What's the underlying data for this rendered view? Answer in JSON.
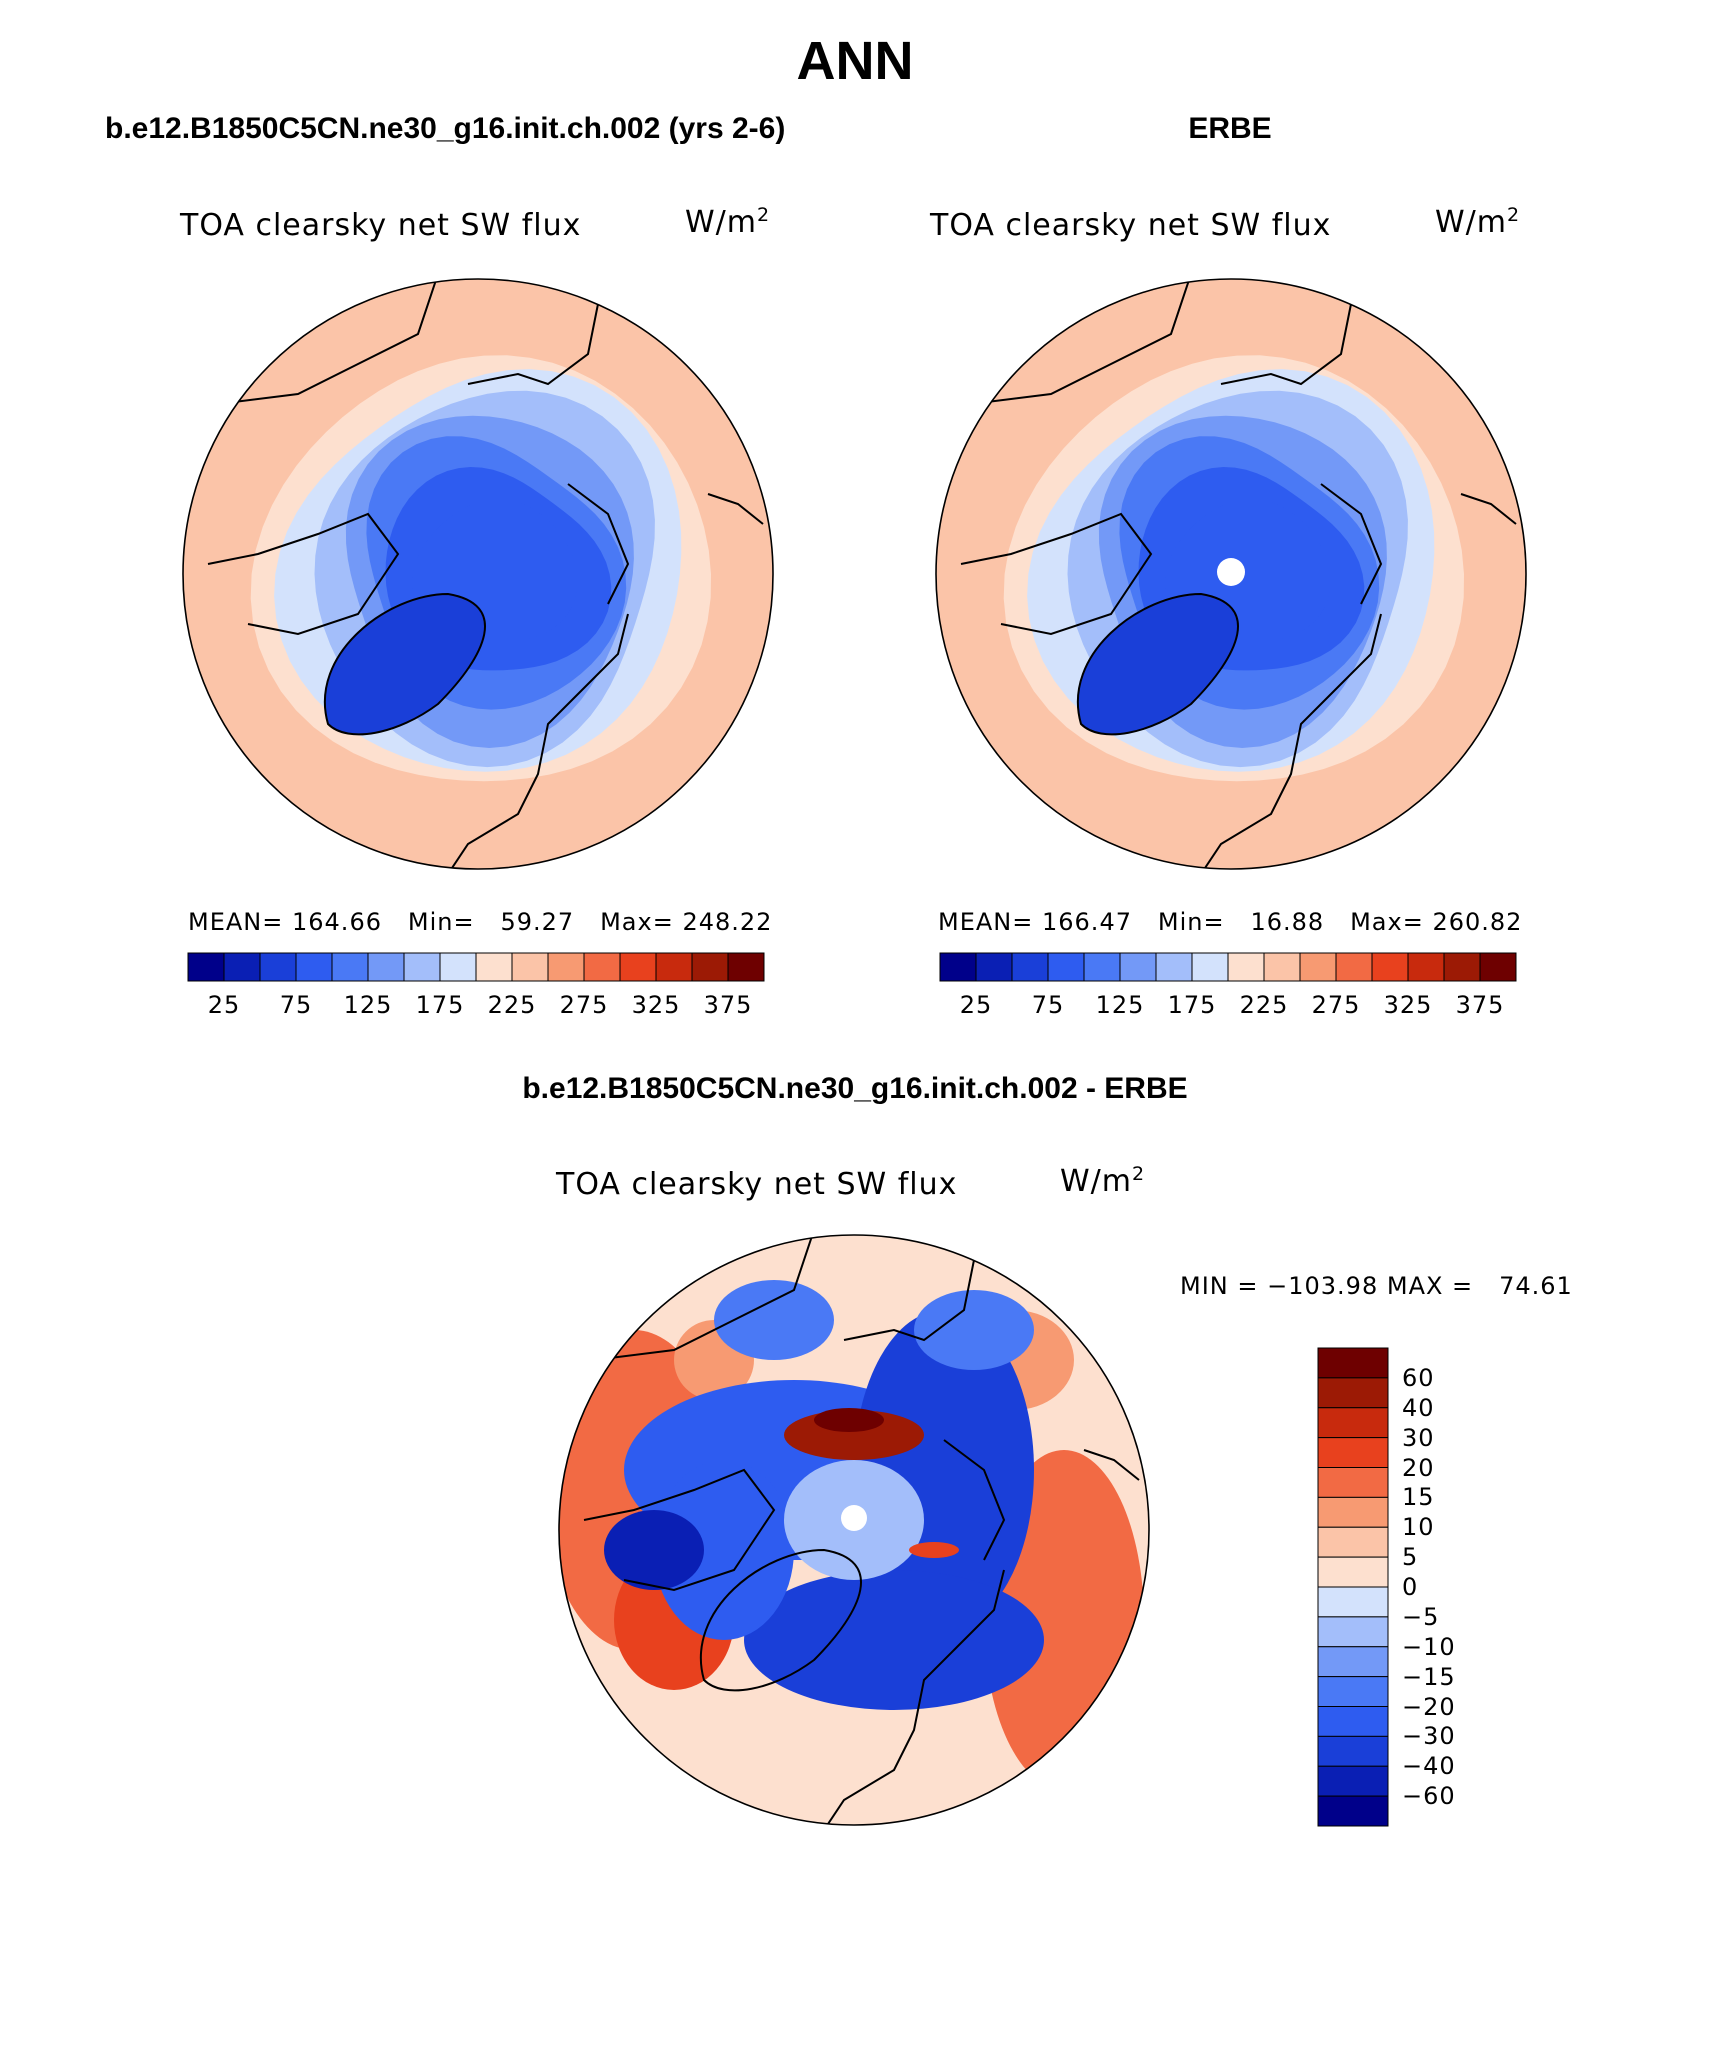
{
  "page": {
    "title": "ANN",
    "left_case": "b.e12.B1850C5CN.ne30_g16.init.ch.002 (yrs 2-6)",
    "right_case": "ERBE",
    "diff_case": "b.e12.B1850C5CN.ne30_g16.init.ch.002 - ERBE"
  },
  "panels": {
    "model": {
      "variable": "TOA clearsky net SW flux",
      "units_base": "W/m",
      "units_exp": "2",
      "mean_label": "MEAN=",
      "mean_value": "164.66",
      "min_label": "Min=",
      "min_value": "59.27",
      "max_label": "Max=",
      "max_value": "248.22"
    },
    "obs": {
      "variable": "TOA clearsky net SW flux",
      "units_base": "W/m",
      "units_exp": "2",
      "mean_label": "MEAN=",
      "mean_value": "166.47",
      "min_label": "Min=",
      "min_value": "16.88",
      "max_label": "Max=",
      "max_value": "260.82"
    },
    "diff": {
      "variable": "TOA clearsky net SW flux",
      "units_base": "W/m",
      "units_exp": "2",
      "min_label": "MIN =",
      "min_value": "−103.98",
      "max_label": "MAX =",
      "max_value": "74.61"
    }
  },
  "chart_data": [
    {
      "type": "heatmap",
      "projection": "north polar stereographic",
      "title": "TOA clearsky net SW flux",
      "units": "W/m2",
      "mean": 164.66,
      "min": 59.27,
      "max": 248.22,
      "levels": [
        25,
        50,
        75,
        100,
        125,
        150,
        175,
        200,
        225,
        250,
        275,
        300,
        325,
        350,
        375
      ],
      "colorbar_labels": [
        "25",
        "75",
        "125",
        "175",
        "225",
        "275",
        "325",
        "375"
      ],
      "colors": [
        "#00008a",
        "#0a1fb4",
        "#1a3fd8",
        "#2e5cf0",
        "#4a79f5",
        "#7399f7",
        "#a3befa",
        "#d3e2fc",
        "#fde0cf",
        "#fbc4a8",
        "#f79a72",
        "#f26a44",
        "#e8411e",
        "#c82a0d",
        "#9c1a05",
        "#6e0000"
      ]
    },
    {
      "type": "heatmap",
      "projection": "north polar stereographic",
      "title": "TOA clearsky net SW flux",
      "units": "W/m2",
      "mean": 166.47,
      "min": 16.88,
      "max": 260.82,
      "levels": [
        25,
        50,
        75,
        100,
        125,
        150,
        175,
        200,
        225,
        250,
        275,
        300,
        325,
        350,
        375
      ],
      "colorbar_labels": [
        "25",
        "75",
        "125",
        "175",
        "225",
        "275",
        "325",
        "375"
      ],
      "colors": [
        "#00008a",
        "#0a1fb4",
        "#1a3fd8",
        "#2e5cf0",
        "#4a79f5",
        "#7399f7",
        "#a3befa",
        "#d3e2fc",
        "#fde0cf",
        "#fbc4a8",
        "#f79a72",
        "#f26a44",
        "#e8411e",
        "#c82a0d",
        "#9c1a05",
        "#6e0000"
      ]
    },
    {
      "type": "heatmap",
      "projection": "north polar stereographic",
      "title": "TOA clearsky net SW flux",
      "units": "W/m2",
      "min": -103.98,
      "max": 74.61,
      "levels": [
        60,
        40,
        30,
        20,
        15,
        10,
        5,
        0,
        -5,
        -10,
        -15,
        -20,
        -30,
        -40,
        -60
      ],
      "colorbar_labels": [
        "60",
        "40",
        "30",
        "20",
        "15",
        "10",
        "5",
        "0",
        "−5",
        "−10",
        "−15",
        "−20",
        "−30",
        "−40",
        "−60"
      ],
      "colors": [
        "#6e0000",
        "#9c1a05",
        "#c82a0d",
        "#e8411e",
        "#f26a44",
        "#f79a72",
        "#fbc4a8",
        "#fde0cf",
        "#d3e2fc",
        "#a3befa",
        "#7399f7",
        "#4a79f5",
        "#2e5cf0",
        "#1a3fd8",
        "#0a1fb4",
        "#00008a"
      ]
    }
  ]
}
